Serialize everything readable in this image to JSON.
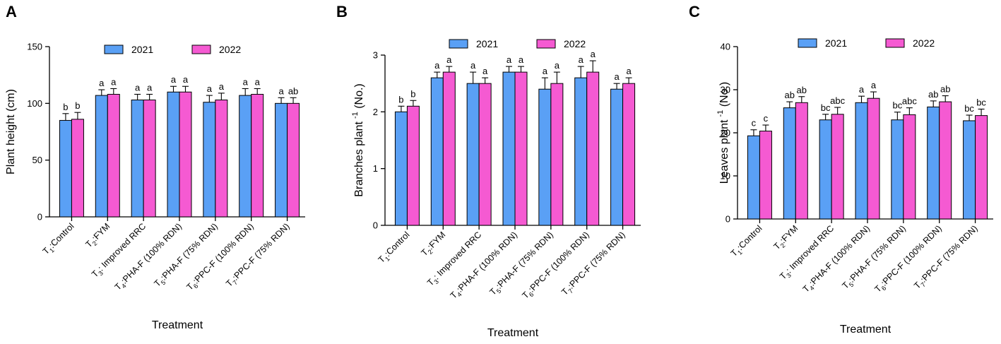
{
  "colors": {
    "series_2021": "#5aa0f5",
    "series_2022": "#f55ad2"
  },
  "chart_data": [
    {
      "panel": "A",
      "type": "bar",
      "ylabel": "Plant height (cm)",
      "xlabel": "Treatment",
      "ylim": [
        0,
        150
      ],
      "yticks": [
        0,
        50,
        100,
        150
      ],
      "categories": [
        "T1:Control",
        "T2:FYM",
        "T3: Improved RRC",
        "T4:PHA-F (100% RDN)",
        "T5:PHA-F (75% RDN)",
        "T6:PPC-F (100% RDN)",
        "T7:PPC-F (75% RDN)"
      ],
      "series": [
        {
          "name": "2021",
          "values": [
            85,
            107,
            103,
            110,
            101,
            107,
            100
          ],
          "errors": [
            6,
            5,
            5,
            5,
            6,
            6,
            5
          ],
          "labels": [
            "b",
            "a",
            "a",
            "a",
            "a",
            "a",
            "a"
          ]
        },
        {
          "name": "2022",
          "values": [
            86,
            108,
            103,
            110,
            103,
            108,
            100
          ],
          "errors": [
            6,
            5,
            5,
            5,
            6,
            5,
            5
          ],
          "labels": [
            "b",
            "a",
            "a",
            "a",
            "a",
            "a",
            "ab"
          ]
        }
      ]
    },
    {
      "panel": "B",
      "type": "bar",
      "ylabel": "Branches plant",
      "ylabel_sup": "-1",
      "ylabel_suffix": " (No.)",
      "xlabel": "Treatment",
      "ylim": [
        0,
        3
      ],
      "yticks": [
        0,
        1,
        2,
        3
      ],
      "categories": [
        "T1:Control",
        "T2:FYM",
        "T3: Improved RRC",
        "T4:PHA-F (100% RDN)",
        "T5:PHA-F (75% RDN)",
        "T6:PPC-F (100% RDN)",
        "T7:PPC-F (75% RDN)"
      ],
      "series": [
        {
          "name": "2021",
          "values": [
            2.0,
            2.6,
            2.5,
            2.7,
            2.4,
            2.6,
            2.4
          ],
          "errors": [
            0.1,
            0.1,
            0.2,
            0.1,
            0.2,
            0.2,
            0.1
          ],
          "labels": [
            "b",
            "a",
            "a",
            "a",
            "a",
            "a",
            "a"
          ]
        },
        {
          "name": "2022",
          "values": [
            2.1,
            2.7,
            2.5,
            2.7,
            2.5,
            2.7,
            2.5
          ],
          "errors": [
            0.1,
            0.1,
            0.1,
            0.1,
            0.2,
            0.2,
            0.1
          ],
          "labels": [
            "b",
            "a",
            "a",
            "a",
            "a",
            "a",
            "a"
          ]
        }
      ]
    },
    {
      "panel": "C",
      "type": "bar",
      "ylabel": "Leaves plant",
      "ylabel_sup": "-1",
      "ylabel_suffix": " (No.)",
      "xlabel": "Treatment",
      "ylim": [
        0,
        40
      ],
      "yticks": [
        0,
        10,
        20,
        30,
        40
      ],
      "categories": [
        "T1:Control",
        "T2:FYM",
        "T3: Improved RRC",
        "T4:PHA-F (100% RDN)",
        "T5:PHA-F (75% RDN)",
        "T6:PPC-F (100% RDN)",
        "T7:PPC-F (75% RDN)"
      ],
      "series": [
        {
          "name": "2021",
          "values": [
            19.3,
            25.8,
            23.0,
            27.0,
            23.0,
            26.0,
            22.8
          ],
          "errors": [
            1.4,
            1.4,
            1.3,
            1.5,
            1.8,
            1.4,
            1.3
          ],
          "labels": [
            "c",
            "ab",
            "bc",
            "a",
            "bc",
            "ab",
            "bc"
          ]
        },
        {
          "name": "2022",
          "values": [
            20.4,
            27.0,
            24.3,
            28.0,
            24.2,
            27.2,
            24.0
          ],
          "errors": [
            1.4,
            1.4,
            1.6,
            1.5,
            1.6,
            1.4,
            1.5
          ],
          "labels": [
            "c",
            "ab",
            "abc",
            "a",
            "abc",
            "ab",
            "bc"
          ]
        }
      ]
    }
  ]
}
